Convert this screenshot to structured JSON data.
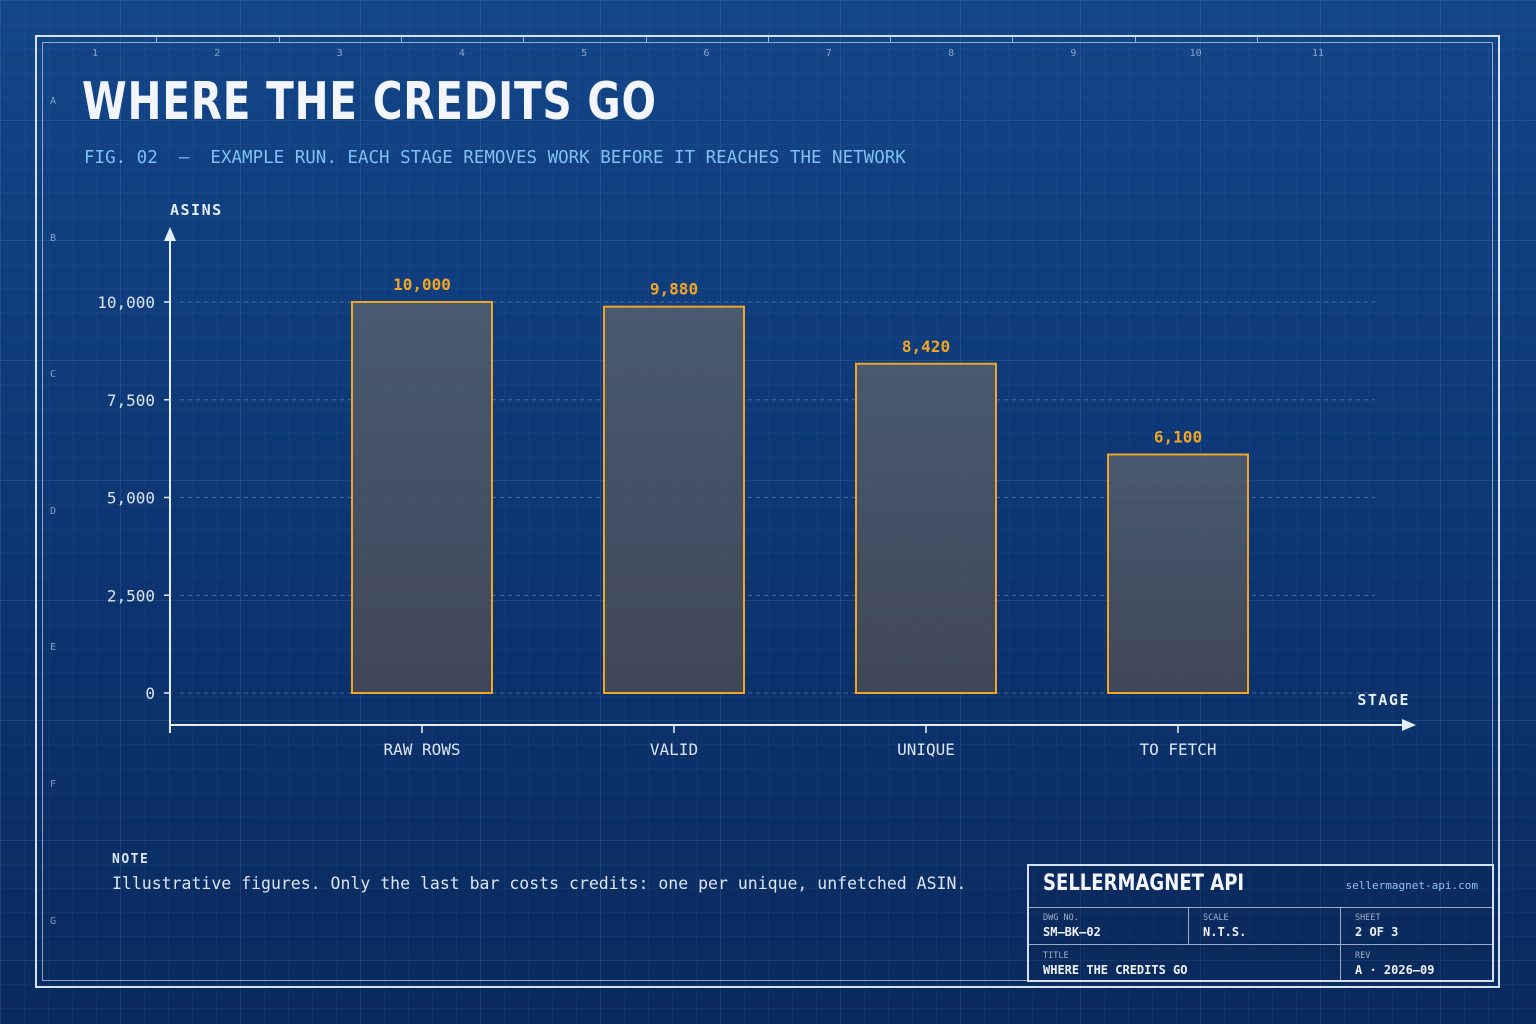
{
  "title": "WHERE THE CREDITS GO",
  "subtitle": "FIG. 02  —  EXAMPLE RUN. EACH STAGE REMOVES WORK BEFORE IT REACHES THE NETWORK",
  "zones": {
    "columns": [
      "1",
      "2",
      "3",
      "4",
      "5",
      "6",
      "7",
      "8",
      "9",
      "10",
      "11"
    ],
    "rows": [
      "A",
      "B",
      "C",
      "D",
      "E",
      "F",
      "G"
    ]
  },
  "chart_data": {
    "type": "bar",
    "categories": [
      "RAW ROWS",
      "VALID",
      "UNIQUE",
      "TO FETCH"
    ],
    "values": [
      10000,
      9880,
      8420,
      6100
    ],
    "value_labels": [
      "10,000",
      "9,880",
      "8,420",
      "6,100"
    ],
    "xlabel": "STAGE",
    "ylabel": "ASINS",
    "ylim": [
      0,
      10000
    ],
    "yticks": [
      0,
      2500,
      5000,
      7500,
      10000
    ],
    "ytick_labels": [
      "0",
      "2,500",
      "5,000",
      "7,500",
      "10,000"
    ],
    "grid": true,
    "colors": {
      "bar_stroke": "#f2a524",
      "bar_fill": "#4a5566",
      "value_label": "#f2a524",
      "axis": "#e6eefa"
    }
  },
  "note": {
    "label": "NOTE",
    "text": "Illustrative figures. Only the last bar costs credits: one per unique, unfetched ASIN."
  },
  "title_block": {
    "brand": "SELLERMAGNET API",
    "url": "sellermagnet-api.com",
    "dwg_label": "DWG NO.",
    "dwg_value": "SM–BK–02",
    "scale_label": "SCALE",
    "scale_value": "N.T.S.",
    "sheet_label": "SHEET",
    "sheet_value": "2 OF 3",
    "title_label": "TITLE",
    "title_value": "WHERE THE CREDITS GO",
    "rev_label": "REV",
    "rev_value": "A · 2026–09"
  }
}
